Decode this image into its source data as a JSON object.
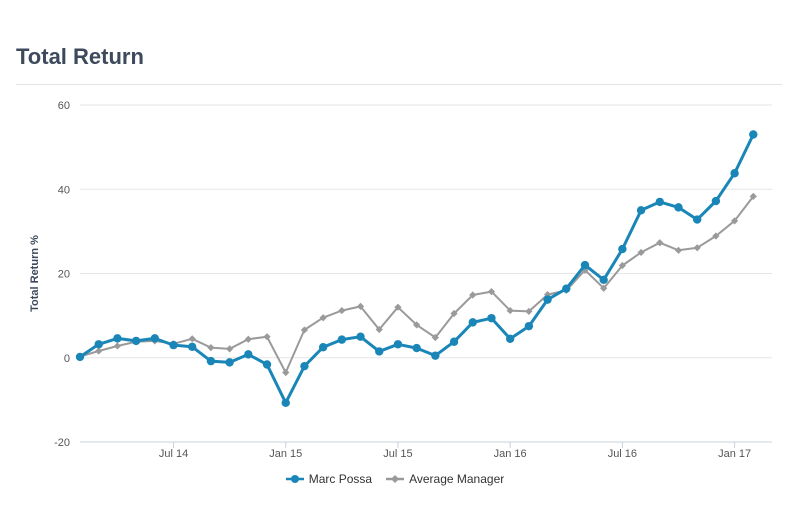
{
  "title": "Total Return",
  "chart_data": {
    "type": "line",
    "ylabel": "Total Return %",
    "ylim": [
      -20,
      60
    ],
    "yticks": [
      -20,
      0,
      20,
      40,
      60
    ],
    "xlim": [
      "2014-02",
      "2017-03"
    ],
    "xticks": [
      {
        "date": "2014-07",
        "label": "Jul 14"
      },
      {
        "date": "2015-01",
        "label": "Jan 15"
      },
      {
        "date": "2015-07",
        "label": "Jul 15"
      },
      {
        "date": "2016-01",
        "label": "Jan 16"
      },
      {
        "date": "2016-07",
        "label": "Jul 16"
      },
      {
        "date": "2017-01",
        "label": "Jan 17"
      }
    ],
    "grid": true,
    "legend_position": "bottom-center",
    "x": [
      "2014-02",
      "2014-03",
      "2014-04",
      "2014-05",
      "2014-06",
      "2014-07",
      "2014-08",
      "2014-09",
      "2014-10",
      "2014-11",
      "2014-12",
      "2015-01",
      "2015-02",
      "2015-03",
      "2015-04",
      "2015-05",
      "2015-06",
      "2015-07",
      "2015-08",
      "2015-09",
      "2015-10",
      "2015-11",
      "2015-12",
      "2016-01",
      "2016-02",
      "2016-03",
      "2016-04",
      "2016-05",
      "2016-06",
      "2016-07",
      "2016-08",
      "2016-09",
      "2016-10",
      "2016-11",
      "2016-12",
      "2017-01",
      "2017-02"
    ],
    "series": [
      {
        "name": "Marc Possa",
        "color": "#1a86b8",
        "marker": "circle",
        "values": [
          0.2,
          3.2,
          4.6,
          4.0,
          4.6,
          3.0,
          2.6,
          -0.8,
          -1.1,
          0.8,
          -1.6,
          -10.7,
          -2.0,
          2.5,
          4.3,
          5.0,
          1.5,
          3.2,
          2.3,
          0.5,
          3.8,
          8.4,
          9.4,
          4.5,
          7.5,
          13.8,
          16.4,
          22.0,
          18.5,
          25.8,
          35.0,
          37.0,
          35.7,
          32.8,
          37.2,
          43.8,
          53.0
        ]
      },
      {
        "name": "Average Manager",
        "color": "#9a9a9a",
        "marker": "diamond",
        "values": [
          0.3,
          1.6,
          2.8,
          3.8,
          4.0,
          3.3,
          4.5,
          2.4,
          2.1,
          4.4,
          5.0,
          -3.5,
          6.6,
          9.5,
          11.2,
          12.2,
          6.7,
          12.0,
          7.8,
          4.8,
          10.5,
          14.9,
          15.7,
          11.2,
          11.0,
          15.0,
          16.0,
          20.8,
          16.5,
          21.9,
          25.0,
          27.3,
          25.5,
          26.1,
          28.9,
          32.5,
          38.3
        ]
      }
    ]
  }
}
